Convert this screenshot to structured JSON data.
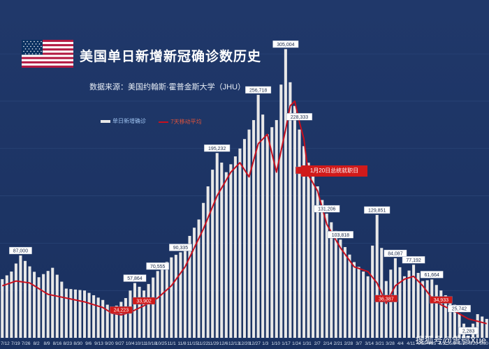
{
  "title": "美国单日新增新冠确诊数历史",
  "source": "数据来源：美国约翰斯·霍普金斯大学（JHU）",
  "annotation": "1月20日总统就职日",
  "watermark": "搜狐号@雪鸮Xue",
  "colors": {
    "background": "#1d3461",
    "bars": "#e8e8e8",
    "average_line": "#c8101e",
    "label_box": "#ffffff",
    "avg_label_box": "#d01a1a"
  },
  "chart_data": {
    "type": "bar",
    "ylim": [
      0,
      320000
    ],
    "series": [
      {
        "name": "单日新增确诊"
      },
      {
        "name": "7天移动平均"
      }
    ],
    "x_tick_labels": [
      "7/12",
      "7/19",
      "7/26",
      "8/2",
      "8/9",
      "8/16",
      "8/23",
      "8/30",
      "9/6",
      "9/13",
      "9/20",
      "9/27",
      "10/4",
      "10/11",
      "10/18",
      "10/25",
      "11/1",
      "11/8",
      "11/15",
      "11/22",
      "11/29",
      "12/6",
      "12/13",
      "12/20",
      "12/27",
      "1/3",
      "1/10",
      "1/17",
      "1/24",
      "1/31",
      "2/7",
      "2/14",
      "2/21",
      "2/28",
      "3/7",
      "3/14",
      "3/21",
      "3/28",
      "4/4",
      "4/11",
      "4/18",
      "4/25",
      "5/2",
      "5/9",
      "5/16",
      "5/23",
      "5/30"
    ],
    "daily_anchors": [
      [
        0,
        62000
      ],
      [
        2,
        70000
      ],
      [
        4,
        87000
      ],
      [
        8,
        64000
      ],
      [
        11,
        74000
      ],
      [
        14,
        52000
      ],
      [
        18,
        50000
      ],
      [
        22,
        40000
      ],
      [
        24,
        30000
      ],
      [
        27,
        42000
      ],
      [
        29,
        57864
      ],
      [
        31,
        50000
      ],
      [
        34,
        70555
      ],
      [
        37,
        85000
      ],
      [
        39,
        90335
      ],
      [
        43,
        125000
      ],
      [
        45,
        160000
      ],
      [
        47,
        195232
      ],
      [
        49,
        175000
      ],
      [
        52,
        200000
      ],
      [
        55,
        230000
      ],
      [
        56,
        256718
      ],
      [
        58,
        215000
      ],
      [
        60,
        230000
      ],
      [
        62,
        305004
      ],
      [
        63,
        270000
      ],
      [
        65,
        220000
      ],
      [
        67,
        185000
      ],
      [
        69,
        160000
      ],
      [
        71,
        131206
      ],
      [
        74,
        103818
      ],
      [
        77,
        80000
      ],
      [
        80,
        65000
      ],
      [
        82,
        129851
      ],
      [
        84,
        60000
      ],
      [
        86,
        84087
      ],
      [
        88,
        65000
      ],
      [
        90,
        77192
      ],
      [
        92,
        60000
      ],
      [
        94,
        61664
      ],
      [
        96,
        50000
      ],
      [
        99,
        35000
      ],
      [
        100,
        25742
      ],
      [
        101,
        15000
      ],
      [
        102,
        2283
      ],
      [
        103,
        15000
      ],
      [
        104,
        25000
      ],
      [
        106,
        20000
      ]
    ],
    "daily_labels": [
      {
        "i": 4,
        "value": 87000,
        "text": "87,000"
      },
      {
        "i": 29,
        "value": 57864,
        "text": "57,864"
      },
      {
        "i": 34,
        "value": 70555,
        "text": "70,555"
      },
      {
        "i": 39,
        "value": 90335,
        "text": "90,335"
      },
      {
        "i": 47,
        "value": 195232,
        "text": "195,232"
      },
      {
        "i": 56,
        "value": 256718,
        "text": "256,718"
      },
      {
        "i": 62,
        "value": 305004,
        "text": "305,004"
      },
      {
        "i": 71,
        "value": 131206,
        "text": "131,206"
      },
      {
        "i": 74,
        "value": 103818,
        "text": "103,818"
      },
      {
        "i": 82,
        "value": 129851,
        "text": "129,851"
      },
      {
        "i": 86,
        "value": 84087,
        "text": "84,087"
      },
      {
        "i": 90,
        "value": 77192,
        "text": "77,192"
      },
      {
        "i": 94,
        "value": 61664,
        "text": "61,664"
      },
      {
        "i": 100,
        "value": 25742,
        "text": "25,742"
      },
      {
        "i": 102,
        "value": 2283,
        "text": "2,283"
      }
    ],
    "avg_anchors": [
      [
        0,
        55000
      ],
      [
        3,
        60000
      ],
      [
        6,
        58000
      ],
      [
        10,
        46000
      ],
      [
        14,
        42000
      ],
      [
        18,
        38000
      ],
      [
        22,
        32000
      ],
      [
        24,
        26000
      ],
      [
        26,
        24223
      ],
      [
        28,
        27000
      ],
      [
        31,
        33902
      ],
      [
        34,
        42000
      ],
      [
        37,
        55000
      ],
      [
        40,
        75000
      ],
      [
        44,
        115000
      ],
      [
        47,
        150000
      ],
      [
        50,
        175000
      ],
      [
        52,
        185000
      ],
      [
        54,
        170000
      ],
      [
        56,
        205000
      ],
      [
        58,
        215000
      ],
      [
        60,
        175000
      ],
      [
        62,
        220000
      ],
      [
        63,
        245000
      ],
      [
        64,
        250000
      ],
      [
        65,
        228333
      ],
      [
        66,
        210000
      ],
      [
        67,
        171831
      ],
      [
        69,
        155000
      ],
      [
        71,
        120000
      ],
      [
        74,
        95000
      ],
      [
        77,
        75000
      ],
      [
        80,
        70000
      ],
      [
        82,
        58000
      ],
      [
        84,
        36387
      ],
      [
        86,
        55000
      ],
      [
        88,
        62000
      ],
      [
        90,
        65000
      ],
      [
        92,
        55000
      ],
      [
        94,
        42000
      ],
      [
        96,
        34933
      ],
      [
        99,
        28000
      ],
      [
        102,
        20000
      ],
      [
        106,
        15000
      ]
    ],
    "avg_labels": [
      {
        "i": 26,
        "value": 24223,
        "text": "24,223"
      },
      {
        "i": 31,
        "value": 33902,
        "text": "33,902"
      },
      {
        "i": 65,
        "value": 228333,
        "text": "228,333",
        "style": "white"
      },
      {
        "i": 67,
        "value": 171831,
        "text": "171,831"
      },
      {
        "i": 84,
        "value": 36387,
        "text": "36,387"
      },
      {
        "i": 96,
        "value": 34933,
        "text": "34,933"
      }
    ]
  }
}
